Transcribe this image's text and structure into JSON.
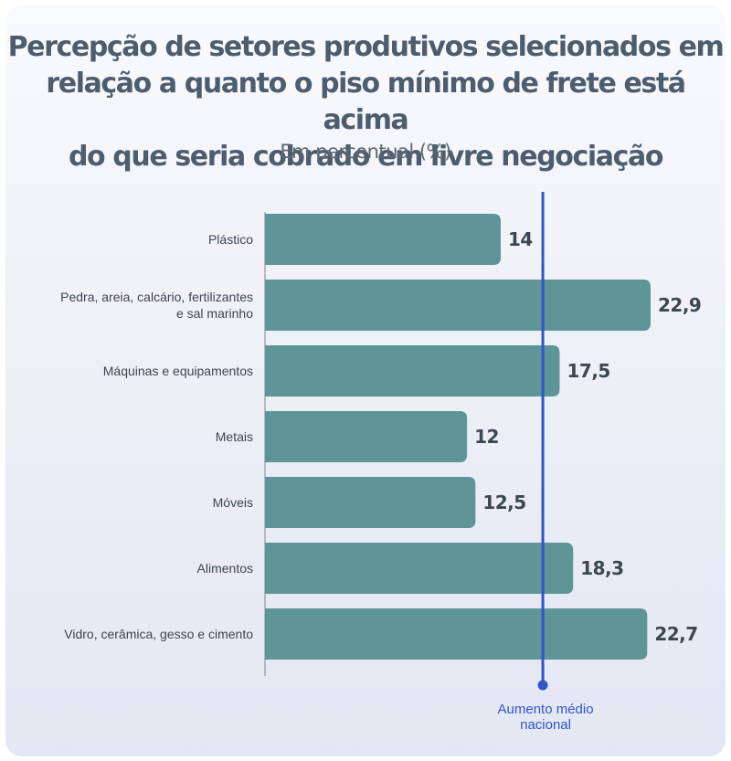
{
  "chart_data": {
    "type": "bar",
    "orientation": "horizontal",
    "title_lines": [
      "Percepção de setores produtivos selecionados em",
      "relação a quanto o piso mínimo de frete está acima",
      "do que seria cobrado em livre negociação"
    ],
    "subtitle": "Em percentual (%)",
    "categories": [
      [
        "Plástico"
      ],
      [
        "Pedra, areia, calcário, fertilizantes",
        "e sal marinho"
      ],
      [
        "Máquinas e equipamentos"
      ],
      [
        "Metais"
      ],
      [
        "Móveis"
      ],
      [
        "Alimentos"
      ],
      [
        "Vidro, cerâmica, gesso e cimento"
      ]
    ],
    "values": [
      14,
      22.9,
      17.5,
      12,
      12.5,
      18.3,
      22.7
    ],
    "value_labels": [
      "14",
      "22,9",
      "17,5",
      "12",
      "12,5",
      "18,3",
      "22,7"
    ],
    "xlim": [
      0,
      25
    ],
    "bar_color": "#5e9597",
    "reference_line": {
      "value": 16.5,
      "label_lines": [
        "Aumento médio",
        "nacional"
      ],
      "color": "#2f55c8"
    },
    "grid": false
  }
}
